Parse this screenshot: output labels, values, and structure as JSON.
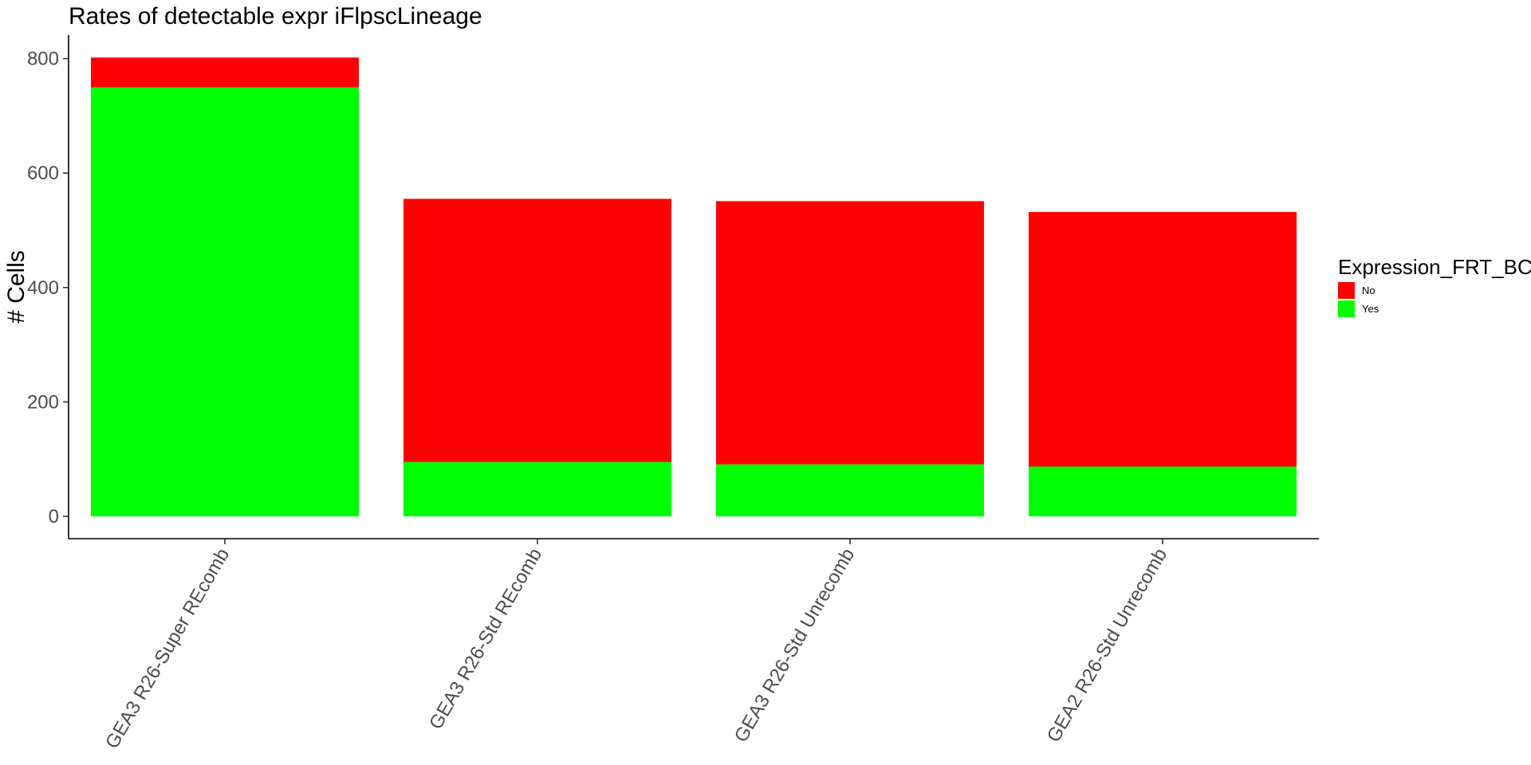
{
  "chart_data": {
    "type": "bar",
    "stacked": true,
    "title": "Rates of detectable expr iFlpscLineage",
    "xlabel": "",
    "ylabel": "# Cells",
    "ylim": [
      0,
      840
    ],
    "yticks": [
      0,
      200,
      400,
      600,
      800
    ],
    "categories": [
      "GEA3 R26-Super REcomb",
      "GEA3 R26-Std REcomb",
      "GEA3 R26-Std Unrecomb",
      "GEA2 R26-Std Unrecomb"
    ],
    "series": [
      {
        "name": "Yes",
        "color": "#00ff00",
        "values": [
          750,
          95,
          91,
          87
        ]
      },
      {
        "name": "No",
        "color": "#ff0000",
        "values": [
          52,
          460,
          460,
          445
        ]
      }
    ],
    "legend": {
      "title": "Expression_FRT_BC",
      "position": "right",
      "items": [
        {
          "label": "No",
          "color": "#ff0000"
        },
        {
          "label": "Yes",
          "color": "#00ff00"
        }
      ]
    }
  }
}
